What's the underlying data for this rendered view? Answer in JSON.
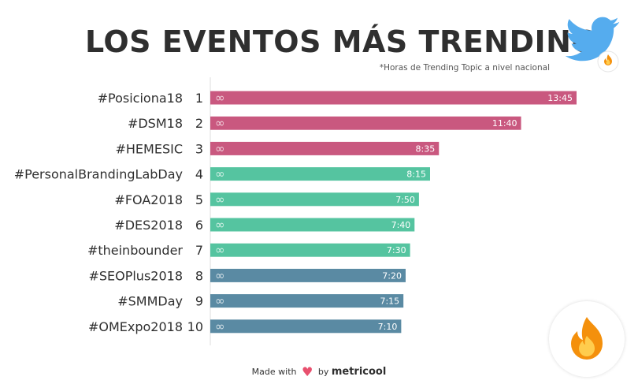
{
  "chart_data": {
    "type": "bar",
    "orientation": "horizontal",
    "title": "LOS EVENTOS MÁS TRENDING",
    "subtitle": "*Horas de Trending Topic a nivel nacional",
    "categories": [
      "#Posiciona18",
      "#DSM18",
      "#HEMESIC",
      "#PersonalBrandingLabDay",
      "#FOA2018",
      "#DES2018",
      "#theinbounder",
      "#SEOPlus2018",
      "#SMMDay",
      "#OMExpo2018"
    ],
    "ranks": [
      "1",
      "2",
      "3",
      "4",
      "5",
      "6",
      "7",
      "8",
      "9",
      "10"
    ],
    "value_labels": [
      "13:45",
      "11:40",
      "8:35",
      "8:15",
      "7:50",
      "7:40",
      "7:30",
      "7:20",
      "7:15",
      "7:10"
    ],
    "values_hours": [
      13.75,
      11.667,
      8.583,
      8.25,
      7.833,
      7.667,
      7.5,
      7.333,
      7.25,
      7.167
    ],
    "bar_colors": [
      "#c9587f",
      "#c9587f",
      "#c9587f",
      "#55c4a0",
      "#55c4a0",
      "#55c4a0",
      "#55c4a0",
      "#5a8aa3",
      "#5a8aa3",
      "#5a8aa3"
    ],
    "xlim": [
      0,
      14
    ],
    "bar_icon": "infinity-icon"
  },
  "footer": {
    "made_with": "Made with",
    "heart": "♥",
    "by": "by",
    "brand": "metricool"
  },
  "icons": {
    "twitter": "twitter-bird-icon",
    "fire": "fire-icon"
  }
}
